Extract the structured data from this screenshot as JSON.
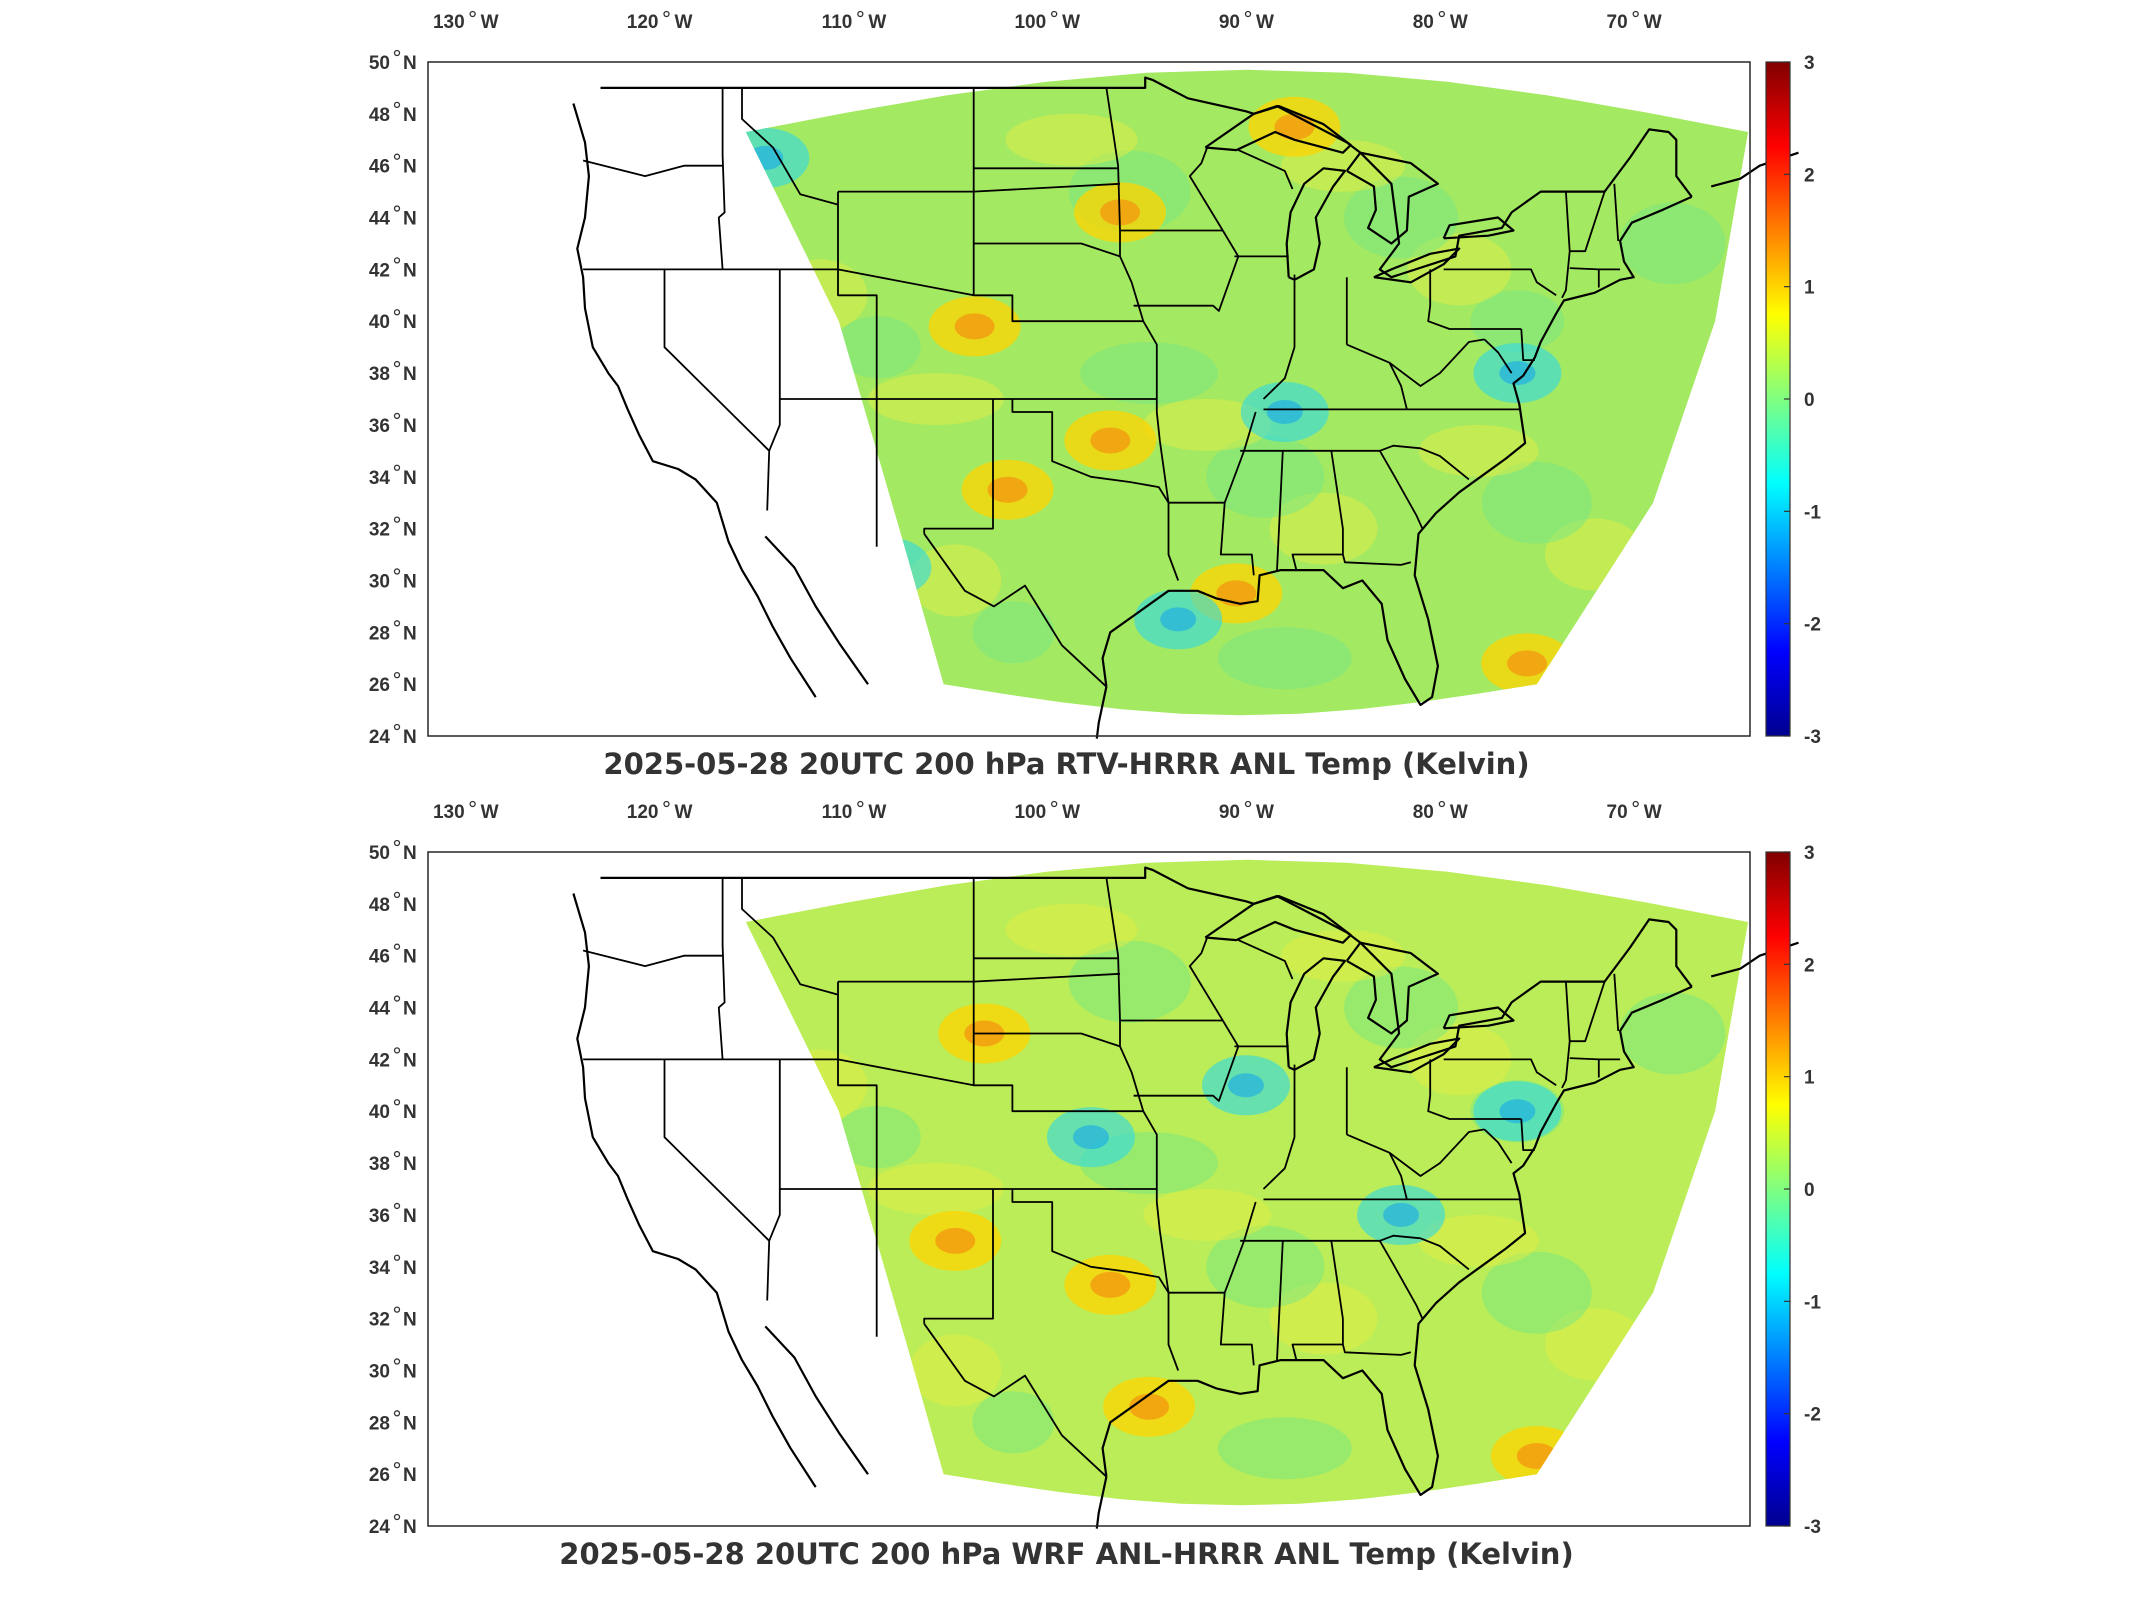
{
  "maps": [
    {
      "title": "2025-05-28 20UTC 200 hPa RTV-HRRR ANL Temp (Kelvin)",
      "lon_ticks": [
        "130",
        "120",
        "110",
        "100",
        "90",
        "80",
        "70"
      ],
      "lon_suffix": "W",
      "lat_ticks": [
        "50",
        "48",
        "46",
        "44",
        "42",
        "40",
        "38",
        "36",
        "34",
        "32",
        "30",
        "28",
        "26",
        "24"
      ],
      "lat_suffix": "N",
      "colorbar_ticks": [
        "3",
        "2",
        "1",
        "0",
        "-1",
        "-2",
        "-3"
      ],
      "colorbar_range": [
        -3,
        3
      ],
      "field_tint": "#9fe85a",
      "warm_spots": [
        {
          "lon": -104,
          "lat": 39.8
        },
        {
          "lon": -97,
          "lat": 35.4
        },
        {
          "lon": -102.3,
          "lat": 33.5
        },
        {
          "lon": -87.5,
          "lat": 47.5
        },
        {
          "lon": -96.5,
          "lat": 44.2
        },
        {
          "lon": -75.5,
          "lat": 26.8
        },
        {
          "lon": -90.5,
          "lat": 29.5
        }
      ],
      "cool_spots": [
        {
          "lon": -114.8,
          "lat": 46.3
        },
        {
          "lon": -108.5,
          "lat": 30.5
        },
        {
          "lon": -93.5,
          "lat": 28.5
        },
        {
          "lon": -76,
          "lat": 38
        },
        {
          "lon": -88,
          "lat": 36.5
        }
      ]
    },
    {
      "title": "2025-05-28 20UTC 200 hPa WRF ANL-HRRR ANL Temp (Kelvin)",
      "lon_ticks": [
        "130",
        "120",
        "110",
        "100",
        "90",
        "80",
        "70"
      ],
      "lon_suffix": "W",
      "lat_ticks": [
        "50",
        "48",
        "46",
        "44",
        "42",
        "40",
        "38",
        "36",
        "34",
        "32",
        "30",
        "28",
        "26",
        "24"
      ],
      "lat_suffix": "N",
      "colorbar_ticks": [
        "3",
        "2",
        "1",
        "0",
        "-1",
        "-2",
        "-3"
      ],
      "colorbar_range": [
        -3,
        3
      ],
      "field_tint": "#b6ec4e",
      "warm_spots": [
        {
          "lon": -97,
          "lat": 33.3
        },
        {
          "lon": -95,
          "lat": 28.6
        },
        {
          "lon": -75,
          "lat": 26.7
        },
        {
          "lon": -103.5,
          "lat": 43
        },
        {
          "lon": -105,
          "lat": 35
        }
      ],
      "cool_spots": [
        {
          "lon": -98,
          "lat": 39
        },
        {
          "lon": -76,
          "lat": 40
        },
        {
          "lon": -90,
          "lat": 41
        },
        {
          "lon": -82,
          "lat": 36
        }
      ]
    }
  ],
  "colors": {
    "frame": "#262626",
    "boundary": "#000000",
    "colormap": [
      "#00008f",
      "#0000ff",
      "#0080ff",
      "#00ffff",
      "#80ff80",
      "#ffff00",
      "#ff8000",
      "#ff0000",
      "#800000"
    ]
  }
}
